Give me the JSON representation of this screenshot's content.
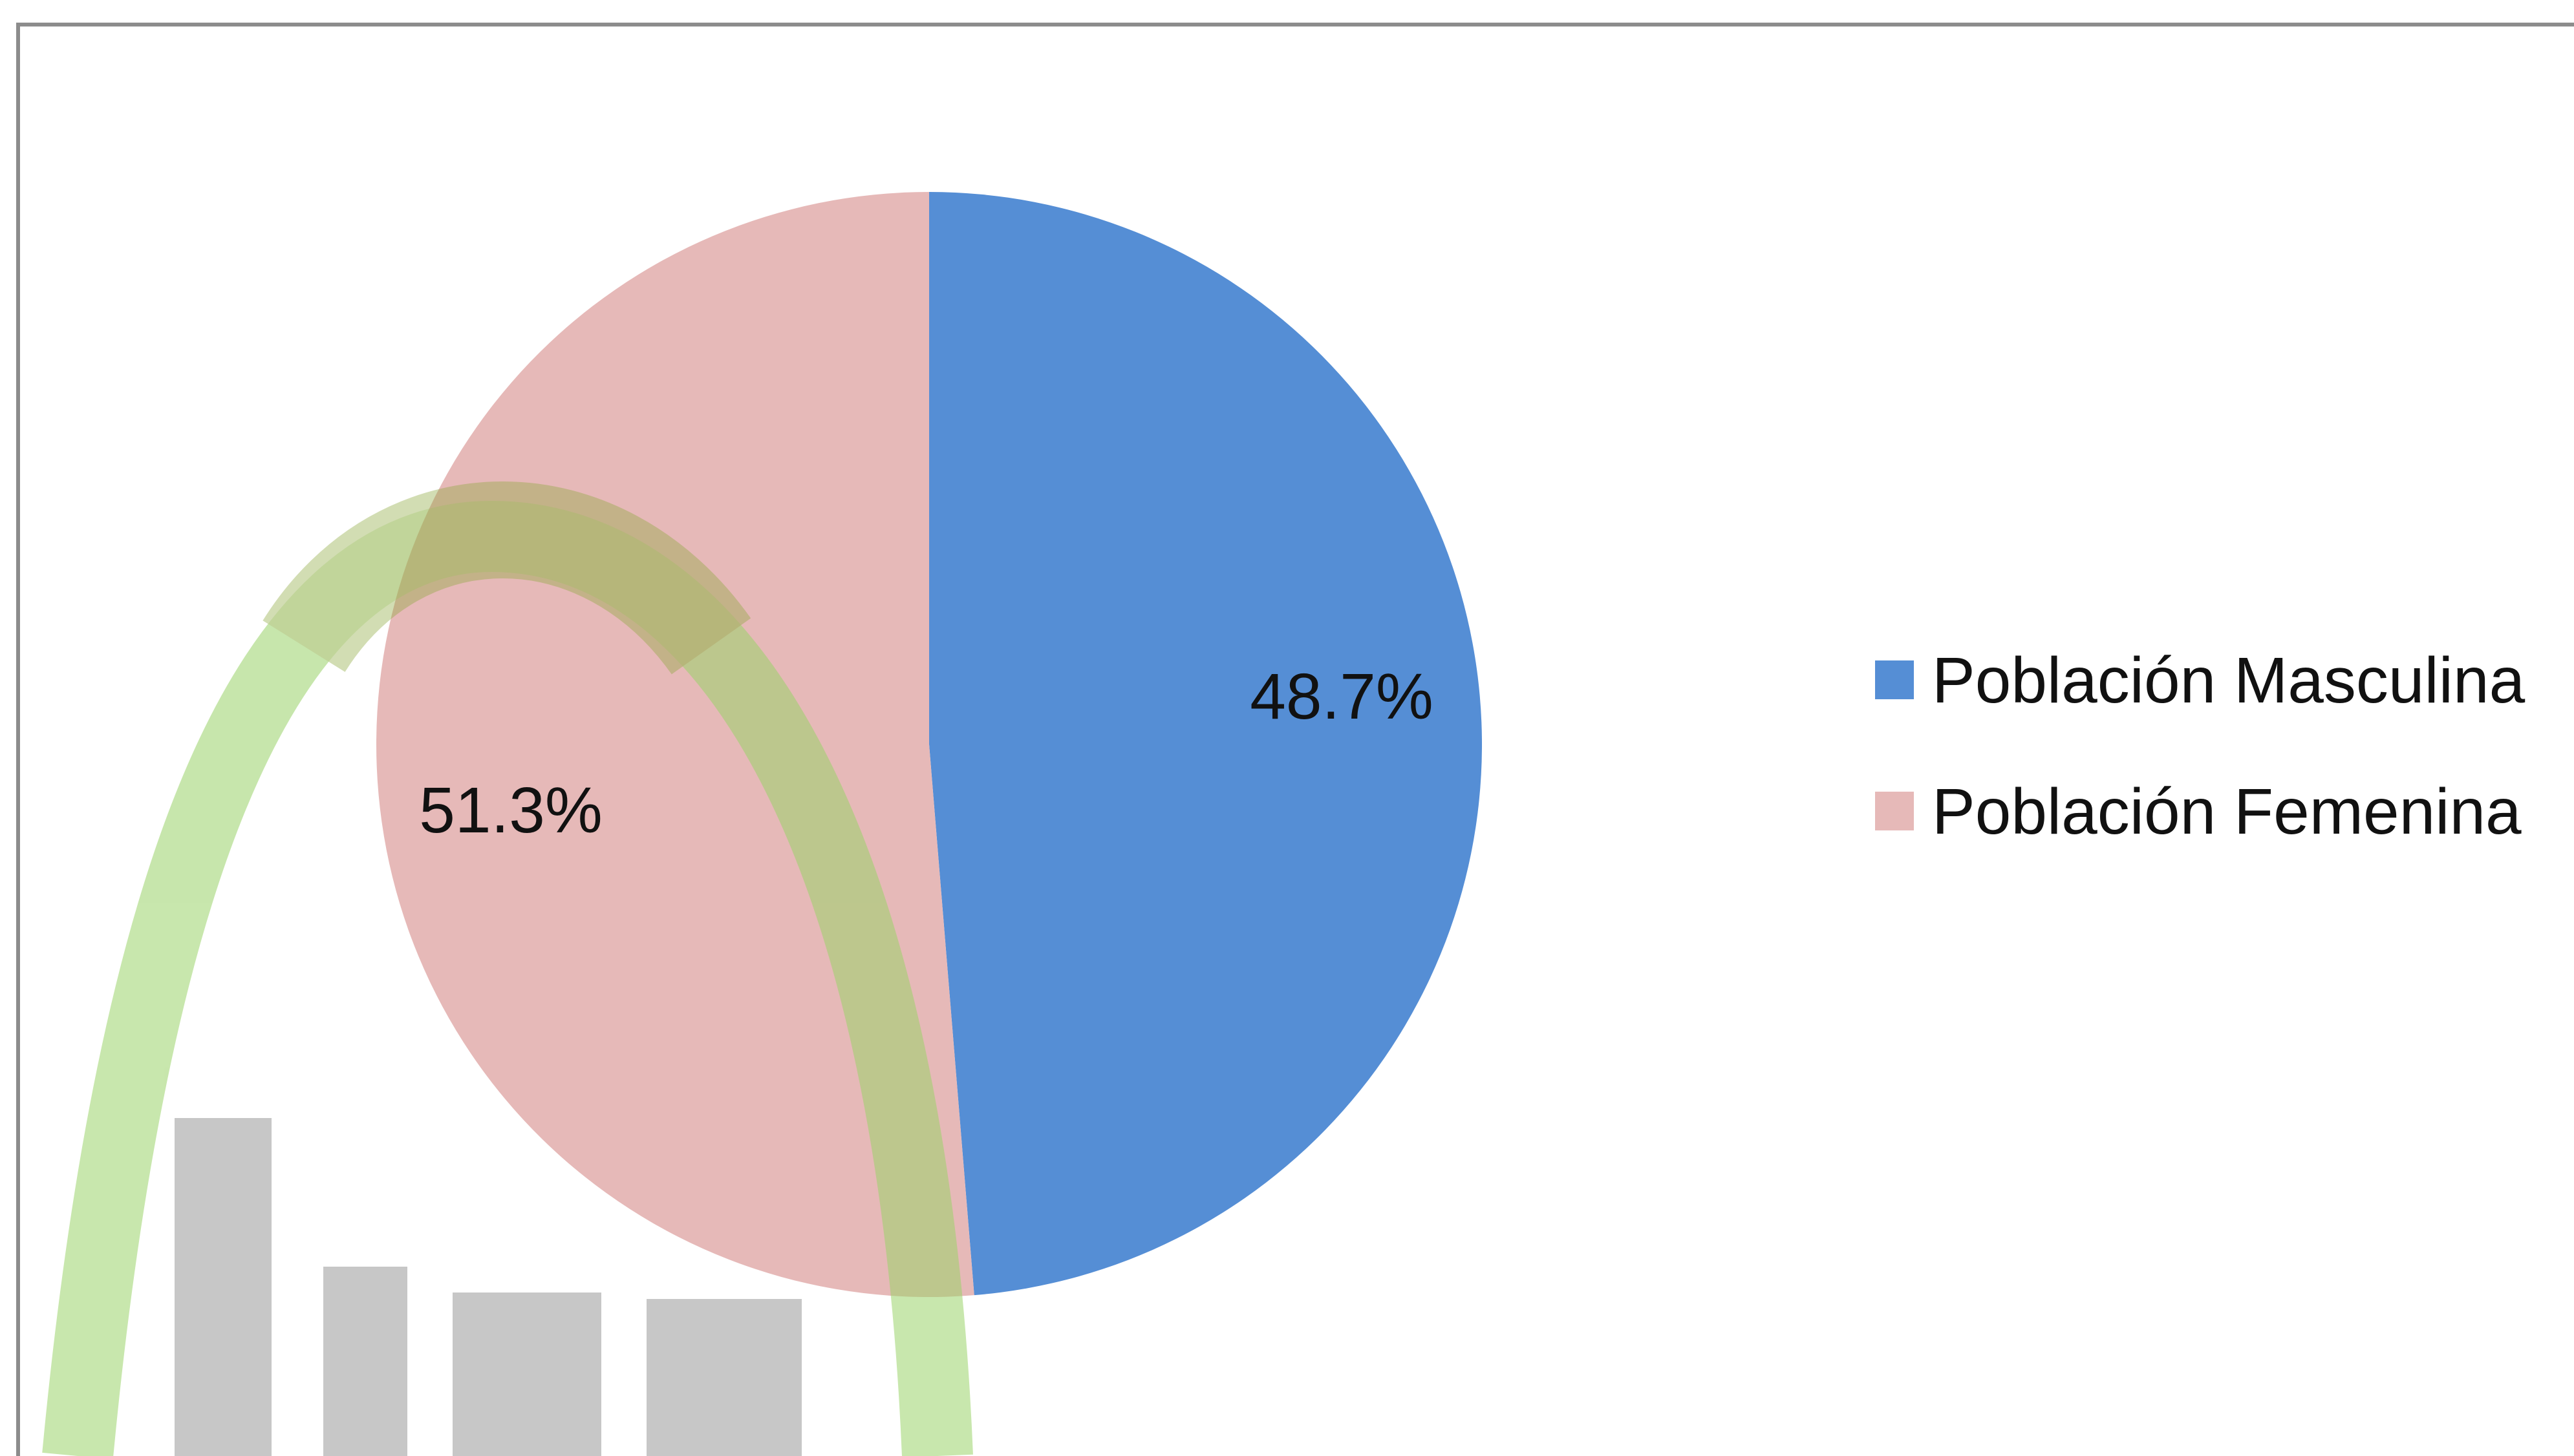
{
  "chart_data": {
    "type": "pie",
    "categories": [
      "Población Masculina",
      "Población Femenina"
    ],
    "values": [
      48.7,
      51.3
    ],
    "data_labels": [
      "48.7%",
      "51.3%"
    ],
    "colors": [
      "#558ED5",
      "#E6B9B8"
    ],
    "start_angle": "12 o'clock, clockwise",
    "legend": {
      "placement": "right",
      "entries": [
        "Población Masculina",
        "Población Femenina"
      ]
    },
    "title": ""
  },
  "watermark": {
    "description": "faded green arc logo with grey letters",
    "arc_color": "#9AD36A",
    "letter_color": "#9A9A9A"
  }
}
